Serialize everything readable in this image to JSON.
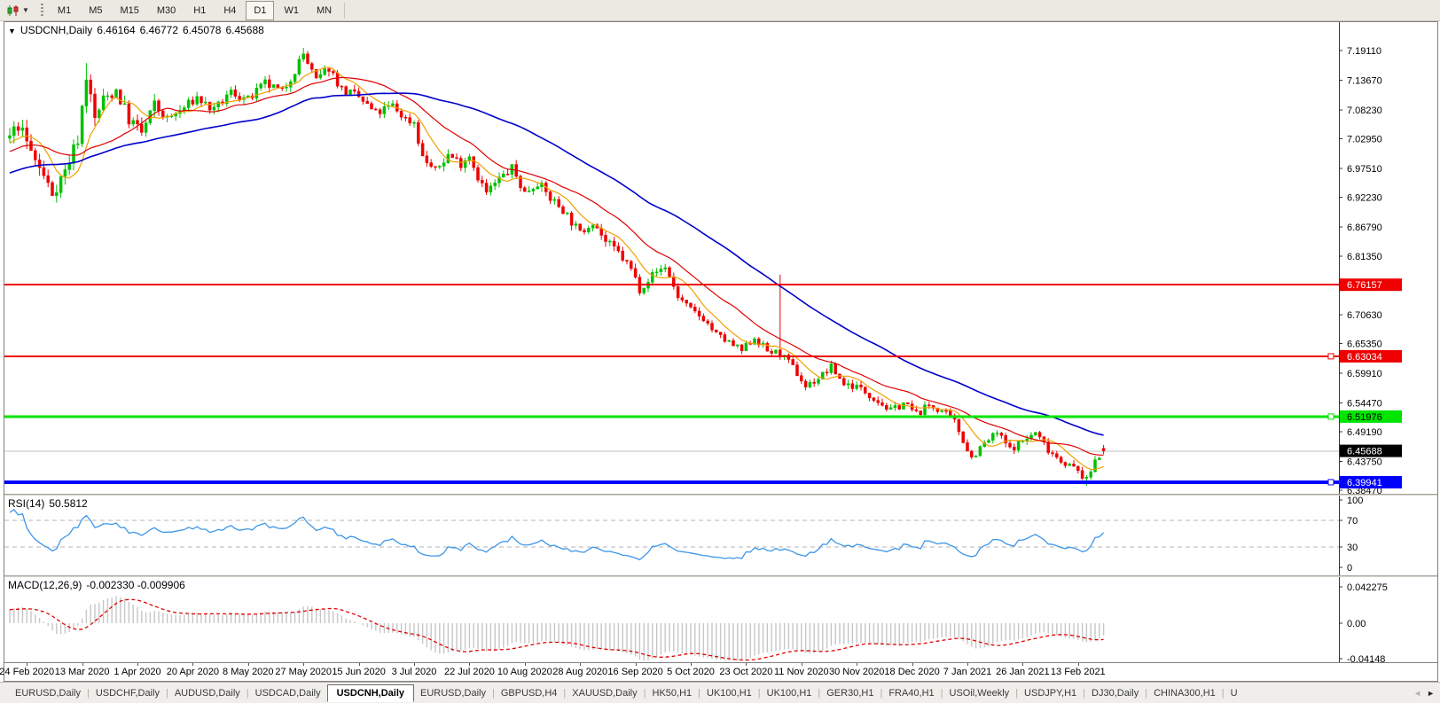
{
  "toolbar": {
    "timeframes": [
      "M1",
      "M5",
      "M15",
      "M30",
      "H1",
      "H4",
      "D1",
      "W1",
      "MN"
    ],
    "active_timeframe": "D1"
  },
  "chart": {
    "title_symbol": "USDCNH,Daily",
    "quote": {
      "open": "6.46164",
      "high": "6.46772",
      "low": "6.45078",
      "close": "6.45688"
    }
  },
  "chart_data": {
    "type": "candlestick",
    "symbol": "USDCNH",
    "timeframe": "Daily",
    "candles_n": 258,
    "seed": 7,
    "warmup": 60,
    "warm_start": 6.89,
    "x_labels": [
      "24 Feb 2020",
      "13 Mar 2020",
      "1 Apr 2020",
      "20 Apr 2020",
      "8 May 2020",
      "27 May 2020",
      "15 Jun 2020",
      "3 Jul 2020",
      "22 Jul 2020",
      "10 Aug 2020",
      "28 Aug 2020",
      "16 Sep 2020",
      "5 Oct 2020",
      "23 Oct 2020",
      "11 Nov 2020",
      "30 Nov 2020",
      "18 Dec 2020",
      "7 Jan 2021",
      "26 Jan 2021",
      "13 Feb 2021"
    ],
    "first_label_index": 4,
    "label_step": 13,
    "y_ticks": [
      "7.19110",
      "7.13670",
      "7.08230",
      "7.02950",
      "6.97510",
      "6.92230",
      "6.86790",
      "6.81350",
      "6.70630",
      "6.65350",
      "6.59910",
      "6.54470",
      "6.49190",
      "6.43750",
      "6.38470"
    ],
    "ylim": [
      6.378,
      7.2431
    ],
    "price_anchors": [
      [
        0,
        7.03
      ],
      [
        2,
        7.055
      ],
      [
        6,
        6.99
      ],
      [
        10,
        6.93
      ],
      [
        13,
        6.97
      ],
      [
        16,
        7.03
      ],
      [
        18,
        7.145
      ],
      [
        20,
        7.065
      ],
      [
        22,
        7.1
      ],
      [
        25,
        7.12
      ],
      [
        28,
        7.065
      ],
      [
        31,
        7.04
      ],
      [
        34,
        7.09
      ],
      [
        37,
        7.065
      ],
      [
        40,
        7.08
      ],
      [
        44,
        7.105
      ],
      [
        48,
        7.08
      ],
      [
        52,
        7.115
      ],
      [
        56,
        7.1
      ],
      [
        60,
        7.13
      ],
      [
        64,
        7.115
      ],
      [
        67,
        7.155
      ],
      [
        69,
        7.185
      ],
      [
        72,
        7.135
      ],
      [
        75,
        7.16
      ],
      [
        78,
        7.12
      ],
      [
        82,
        7.105
      ],
      [
        86,
        7.075
      ],
      [
        90,
        7.09
      ],
      [
        93,
        7.065
      ],
      [
        95,
        7.06
      ],
      [
        97,
        6.995
      ],
      [
        100,
        6.97
      ],
      [
        103,
        7.0
      ],
      [
        106,
        6.985
      ],
      [
        108,
        7.0
      ],
      [
        110,
        6.96
      ],
      [
        112,
        6.93
      ],
      [
        115,
        6.955
      ],
      [
        118,
        6.975
      ],
      [
        121,
        6.93
      ],
      [
        124,
        6.95
      ],
      [
        127,
        6.92
      ],
      [
        130,
        6.9
      ],
      [
        134,
        6.855
      ],
      [
        137,
        6.88
      ],
      [
        140,
        6.84
      ],
      [
        143,
        6.82
      ],
      [
        146,
        6.79
      ],
      [
        148,
        6.755
      ],
      [
        151,
        6.78
      ],
      [
        154,
        6.795
      ],
      [
        157,
        6.74
      ],
      [
        160,
        6.715
      ],
      [
        163,
        6.7
      ],
      [
        166,
        6.67
      ],
      [
        169,
        6.655
      ],
      [
        172,
        6.64
      ],
      [
        175,
        6.665
      ],
      [
        178,
        6.64
      ],
      [
        181,
        6.635
      ],
      [
        184,
        6.61
      ],
      [
        187,
        6.575
      ],
      [
        190,
        6.59
      ],
      [
        193,
        6.61
      ],
      [
        196,
        6.58
      ],
      [
        199,
        6.575
      ],
      [
        203,
        6.555
      ],
      [
        207,
        6.53
      ],
      [
        210,
        6.545
      ],
      [
        213,
        6.525
      ],
      [
        216,
        6.54
      ],
      [
        219,
        6.53
      ],
      [
        222,
        6.51
      ],
      [
        225,
        6.46
      ],
      [
        226,
        6.445
      ],
      [
        229,
        6.47
      ],
      [
        232,
        6.49
      ],
      [
        235,
        6.46
      ],
      [
        238,
        6.475
      ],
      [
        241,
        6.49
      ],
      [
        244,
        6.46
      ],
      [
        247,
        6.44
      ],
      [
        251,
        6.42
      ],
      [
        253,
        6.402
      ],
      [
        255,
        6.44
      ],
      [
        257,
        6.457
      ]
    ],
    "spikes": [
      {
        "i": 18,
        "high": 7.168
      },
      {
        "i": 69,
        "high": 7.196
      },
      {
        "i": 181,
        "high": 6.78
      },
      {
        "i": 253,
        "low": 6.393
      }
    ],
    "last_candle": {
      "o": 6.46164,
      "h": 6.46772,
      "l": 6.45078,
      "c": 6.45688
    },
    "moving_averages": [
      {
        "period": 8,
        "color": "#f0a000",
        "width": 1.2
      },
      {
        "period": 21,
        "color": "#e00000",
        "width": 1.2
      },
      {
        "period": 55,
        "color": "#0000cc",
        "width": 1.6
      }
    ],
    "hlines": [
      {
        "price": 6.76157,
        "label": "6.76157",
        "color": "#ee0000",
        "width": 2,
        "text_color": "#ffffff",
        "handle": false
      },
      {
        "price": 6.63034,
        "label": "6.63034",
        "color": "#ee0000",
        "width": 2,
        "text_color": "#ffffff",
        "handle": true
      },
      {
        "price": 6.51976,
        "label": "6.51976",
        "color": "#00e400",
        "width": 3,
        "text_color": "#000000",
        "handle": true
      },
      {
        "price": 6.39941,
        "label": "6.39941",
        "color": "#0000ff",
        "width": 4,
        "text_color": "#ffffff",
        "handle": true
      }
    ],
    "current_price": {
      "value": 6.45688,
      "label": "6.45688",
      "line_color": "#c0c0c0",
      "box_color": "#000000",
      "text_color": "#ffffff"
    },
    "candle_up_color": "#00c000",
    "candle_down_color": "#ee0000",
    "rsi": {
      "name": "RSI(14)",
      "value": "50.5812",
      "period": 14,
      "levels": [
        70,
        30
      ],
      "ticks": [
        "100",
        "70",
        "30",
        "0"
      ],
      "tick_values": [
        100,
        70,
        30,
        0
      ],
      "color": "#3c96e8"
    },
    "macd": {
      "name": "MACD(12,26,9)",
      "values_text": "-0.002330 -0.009906",
      "main": -0.00233,
      "signal": -0.009906,
      "ticks": [
        "0.042275",
        "0.00",
        "-0.04148"
      ],
      "tick_values": [
        0.042275,
        0,
        -0.04148
      ],
      "hist_color": "#c6c6c6",
      "signal_color": "#e00000"
    }
  },
  "tabs": {
    "items": [
      {
        "label": "EURUSD,Daily",
        "active": false
      },
      {
        "label": "USDCHF,Daily",
        "active": false
      },
      {
        "label": "AUDUSD,Daily",
        "active": false
      },
      {
        "label": "USDCAD,Daily",
        "active": false
      },
      {
        "label": "USDCNH,Daily",
        "active": true
      },
      {
        "label": "EURUSD,Daily",
        "active": false
      },
      {
        "label": "GBPUSD,H4",
        "active": false
      },
      {
        "label": "XAUUSD,Daily",
        "active": false
      },
      {
        "label": "HK50,H1",
        "active": false
      },
      {
        "label": "UK100,H1",
        "active": false
      },
      {
        "label": "UK100,H1",
        "active": false
      },
      {
        "label": "GER30,H1",
        "active": false
      },
      {
        "label": "FRA40,H1",
        "active": false
      },
      {
        "label": "USOil,Weekly",
        "active": false
      },
      {
        "label": "USDJPY,H1",
        "active": false
      },
      {
        "label": "DJ30,Daily",
        "active": false
      },
      {
        "label": "CHINA300,H1",
        "active": false
      },
      {
        "label": "U",
        "active": false
      }
    ],
    "scroll_left": "◄",
    "scroll_right": "►"
  }
}
